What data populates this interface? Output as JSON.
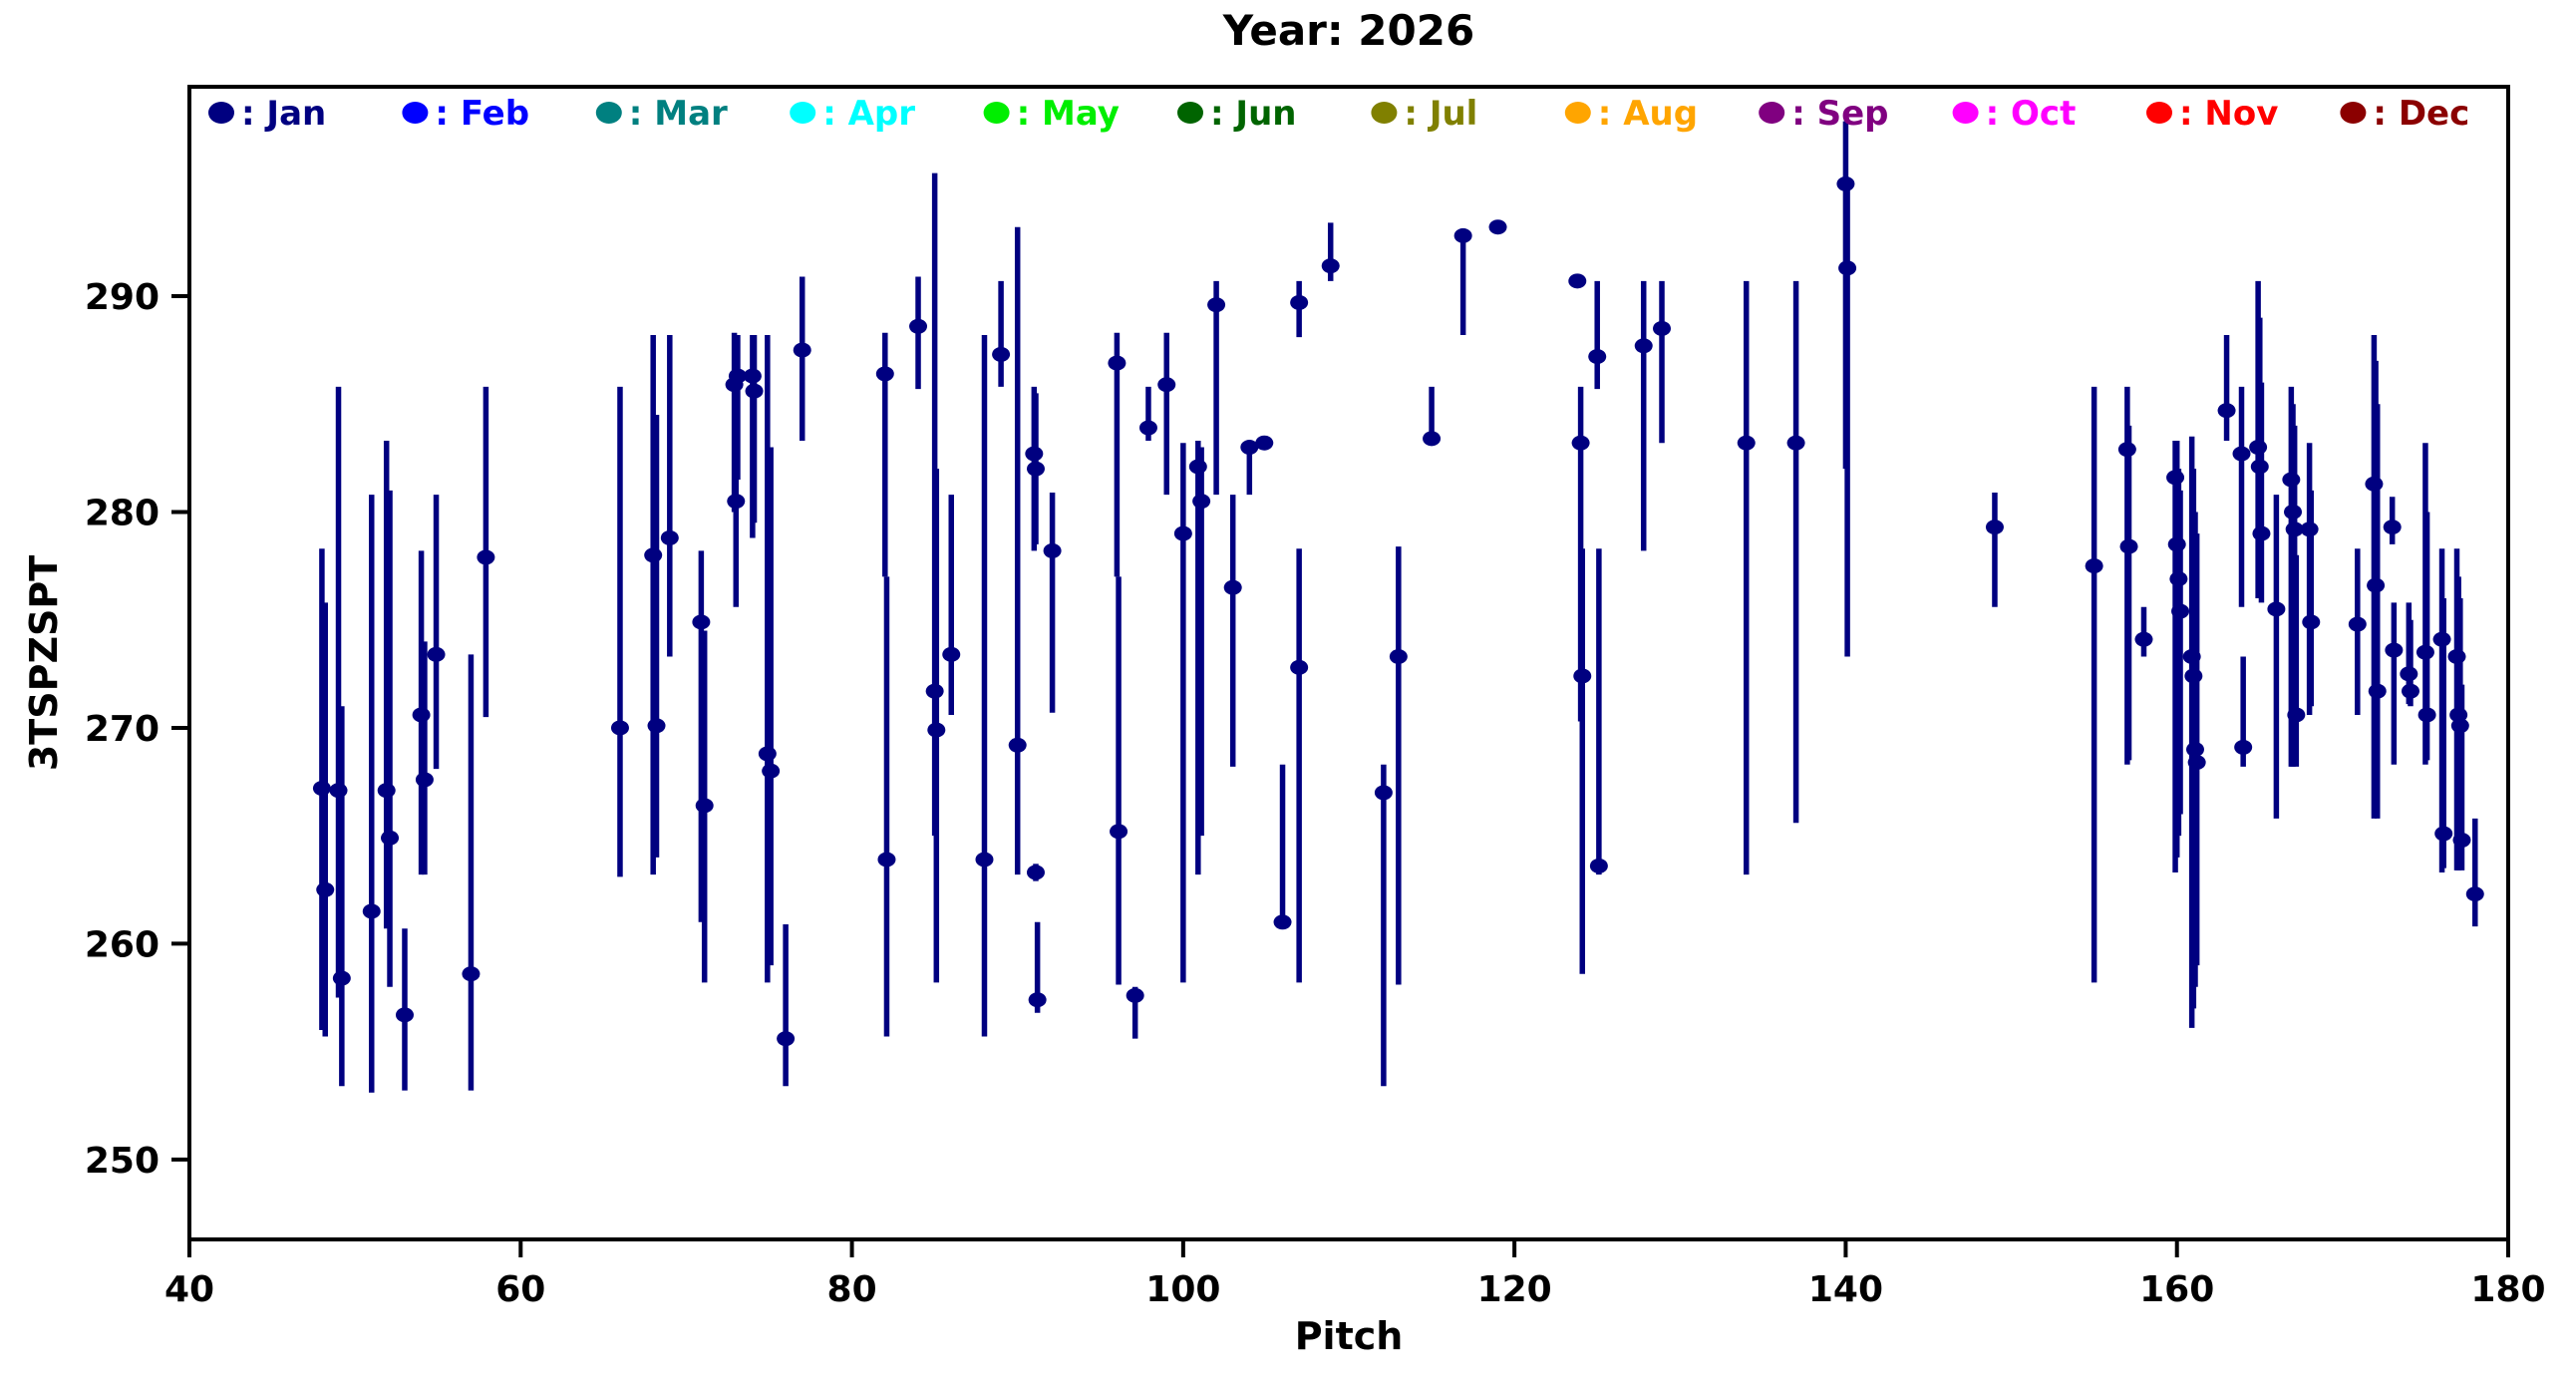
{
  "chart_data": {
    "type": "scatter",
    "title": "Year: 2026",
    "xlabel": "Pitch",
    "ylabel": "3TSPZSPT",
    "xlim": [
      40,
      180
    ],
    "ylim": [
      246.3,
      299.7
    ],
    "xticks": [
      40,
      60,
      80,
      100,
      120,
      140,
      160,
      180
    ],
    "yticks": [
      250,
      260,
      270,
      280,
      290
    ],
    "grid": false,
    "legend_position": "top-inside-row",
    "marker": "circle",
    "error_bars": true,
    "legend": [
      {
        "label": "Jan",
        "color": "#000080"
      },
      {
        "label": "Feb",
        "color": "#0000FF"
      },
      {
        "label": "Mar",
        "color": "#008080"
      },
      {
        "label": "Apr",
        "color": "#00FFFF"
      },
      {
        "label": "May",
        "color": "#00EE00"
      },
      {
        "label": "Jun",
        "color": "#006400"
      },
      {
        "label": "Jul",
        "color": "#808000"
      },
      {
        "label": "Aug",
        "color": "#FFA500"
      },
      {
        "label": "Sep",
        "color": "#800080"
      },
      {
        "label": "Oct",
        "color": "#FF00FF"
      },
      {
        "label": "Nov",
        "color": "#FF0000"
      },
      {
        "label": "Dec",
        "color": "#8B0000"
      }
    ],
    "series": [
      {
        "name": "Jan",
        "color": "#000080",
        "points_format": [
          "pitch",
          "value",
          "err_lo",
          "err_hi"
        ],
        "points": [
          [
            48.0,
            267.2,
            256.0,
            278.3
          ],
          [
            48.2,
            262.5,
            255.7,
            275.8
          ],
          [
            49.0,
            267.1,
            257.5,
            285.8
          ],
          [
            49.2,
            258.4,
            253.4,
            271.0
          ],
          [
            51.0,
            261.5,
            253.1,
            280.8
          ],
          [
            51.9,
            267.1,
            260.7,
            283.3
          ],
          [
            52.1,
            264.9,
            258.0,
            281.0
          ],
          [
            53.0,
            256.7,
            253.2,
            260.7
          ],
          [
            54.0,
            270.6,
            263.2,
            278.2
          ],
          [
            54.2,
            267.6,
            263.2,
            274.0
          ],
          [
            54.9,
            273.4,
            268.1,
            280.8
          ],
          [
            57.0,
            258.6,
            253.2,
            273.4
          ],
          [
            57.9,
            277.9,
            270.5,
            285.8
          ],
          [
            66.0,
            270.0,
            263.1,
            285.8
          ],
          [
            68.0,
            278.0,
            263.2,
            288.2
          ],
          [
            68.2,
            270.1,
            264.0,
            284.5
          ],
          [
            69.0,
            278.8,
            273.3,
            288.2
          ],
          [
            70.9,
            274.9,
            261.0,
            278.2
          ],
          [
            71.1,
            266.4,
            258.2,
            274.5
          ],
          [
            72.9,
            285.9,
            280.0,
            288.3
          ],
          [
            73.0,
            280.5,
            275.6,
            285.5
          ],
          [
            73.1,
            286.3,
            281.5,
            288.2
          ],
          [
            74.0,
            286.3,
            278.8,
            288.2
          ],
          [
            74.1,
            285.6,
            279.5,
            288.2
          ],
          [
            74.9,
            268.8,
            258.2,
            288.2
          ],
          [
            75.1,
            268.0,
            259.0,
            283.0
          ],
          [
            76.0,
            255.6,
            253.4,
            260.9
          ],
          [
            77.0,
            287.5,
            283.3,
            290.9
          ],
          [
            82.0,
            286.4,
            277.0,
            288.3
          ],
          [
            82.1,
            263.9,
            255.7,
            277.0
          ],
          [
            84.0,
            288.6,
            285.7,
            290.9
          ],
          [
            85.0,
            271.7,
            265.0,
            295.7
          ],
          [
            85.1,
            269.9,
            258.2,
            282.0
          ],
          [
            86.0,
            273.4,
            270.6,
            280.8
          ],
          [
            88.0,
            263.9,
            255.7,
            288.2
          ],
          [
            89.0,
            287.3,
            285.8,
            290.7
          ],
          [
            90.0,
            269.2,
            263.2,
            293.2
          ],
          [
            91.0,
            282.7,
            278.2,
            285.8
          ],
          [
            91.1,
            282.0,
            278.5,
            285.5
          ],
          [
            91.1,
            263.3,
            262.9,
            263.7
          ],
          [
            91.2,
            257.4,
            256.8,
            261.0
          ],
          [
            92.1,
            278.2,
            270.7,
            280.9
          ],
          [
            96.0,
            286.9,
            277.0,
            288.3
          ],
          [
            96.1,
            265.2,
            258.1,
            277.0
          ],
          [
            97.1,
            257.6,
            255.6,
            258.0
          ],
          [
            97.9,
            283.9,
            283.3,
            285.8
          ],
          [
            99.0,
            285.9,
            280.8,
            288.3
          ],
          [
            100.0,
            279.0,
            258.2,
            283.2
          ],
          [
            100.9,
            282.1,
            263.2,
            283.3
          ],
          [
            101.1,
            280.5,
            265.0,
            283.0
          ],
          [
            102.0,
            289.6,
            280.8,
            290.7
          ],
          [
            103.0,
            276.5,
            268.2,
            280.8
          ],
          [
            104.0,
            283.0,
            280.8,
            283.2
          ],
          [
            104.9,
            283.2,
            283.0,
            283.4
          ],
          [
            106.0,
            261.0,
            260.9,
            268.3
          ],
          [
            107.0,
            272.8,
            258.2,
            278.3
          ],
          [
            107.0,
            289.7,
            288.1,
            290.7
          ],
          [
            108.9,
            291.4,
            290.7,
            293.4
          ],
          [
            112.1,
            267.0,
            253.4,
            268.3
          ],
          [
            113.0,
            273.3,
            258.1,
            278.4
          ],
          [
            115.0,
            283.4,
            283.3,
            285.8
          ],
          [
            116.9,
            292.8,
            288.2,
            293.0
          ],
          [
            119.0,
            293.2,
            293.0,
            293.4
          ],
          [
            123.8,
            290.7,
            290.5,
            290.9
          ],
          [
            124.0,
            283.2,
            270.3,
            285.8
          ],
          [
            124.1,
            272.4,
            258.6,
            278.3
          ],
          [
            125.0,
            287.2,
            285.7,
            290.7
          ],
          [
            125.1,
            263.6,
            263.2,
            278.3
          ],
          [
            127.8,
            287.7,
            278.2,
            290.7
          ],
          [
            128.9,
            288.5,
            283.2,
            290.7
          ],
          [
            134.0,
            283.2,
            263.2,
            290.7
          ],
          [
            137.0,
            283.2,
            265.6,
            290.7
          ],
          [
            140.0,
            295.2,
            282.0,
            298.1
          ],
          [
            140.1,
            291.3,
            273.3,
            295.0
          ],
          [
            149.0,
            279.3,
            275.6,
            280.9
          ],
          [
            155.0,
            277.5,
            258.2,
            285.8
          ],
          [
            157.0,
            282.9,
            268.3,
            285.8
          ],
          [
            157.1,
            278.4,
            268.5,
            284.0
          ],
          [
            158.0,
            274.1,
            273.3,
            275.6
          ],
          [
            159.9,
            281.6,
            263.3,
            283.3
          ],
          [
            160.0,
            278.5,
            264.0,
            283.3
          ],
          [
            160.1,
            276.9,
            265.0,
            282.0
          ],
          [
            160.2,
            275.4,
            266.0,
            281.0
          ],
          [
            160.9,
            273.3,
            256.1,
            283.5
          ],
          [
            161.0,
            272.4,
            257.0,
            282.0
          ],
          [
            161.1,
            269.0,
            258.0,
            280.0
          ],
          [
            161.2,
            268.4,
            259.0,
            279.0
          ],
          [
            163.0,
            284.7,
            283.3,
            288.2
          ],
          [
            163.9,
            282.7,
            275.6,
            285.8
          ],
          [
            164.0,
            269.1,
            268.2,
            273.3
          ],
          [
            164.9,
            283.0,
            276.0,
            290.7
          ],
          [
            165.0,
            282.1,
            276.5,
            289.0
          ],
          [
            165.1,
            279.0,
            275.8,
            286.0
          ],
          [
            166.0,
            275.5,
            265.8,
            280.8
          ],
          [
            166.9,
            281.5,
            268.2,
            285.8
          ],
          [
            167.0,
            280.0,
            268.2,
            285.0
          ],
          [
            167.1,
            279.2,
            269.0,
            284.0
          ],
          [
            167.2,
            270.6,
            268.2,
            278.0
          ],
          [
            168.0,
            279.2,
            270.6,
            283.2
          ],
          [
            168.1,
            274.9,
            271.0,
            281.0
          ],
          [
            170.9,
            274.8,
            270.6,
            278.3
          ],
          [
            171.9,
            281.3,
            265.8,
            288.2
          ],
          [
            172.0,
            276.6,
            266.5,
            287.0
          ],
          [
            172.1,
            271.7,
            265.8,
            285.0
          ],
          [
            173.0,
            279.3,
            278.5,
            280.7
          ],
          [
            173.1,
            273.6,
            268.3,
            275.8
          ],
          [
            174.0,
            272.5,
            271.1,
            275.8
          ],
          [
            174.1,
            271.7,
            271.0,
            275.0
          ],
          [
            175.0,
            273.5,
            268.3,
            283.2
          ],
          [
            175.1,
            270.6,
            268.5,
            280.0
          ],
          [
            176.0,
            274.1,
            263.3,
            278.3
          ],
          [
            176.1,
            265.1,
            263.5,
            276.0
          ],
          [
            176.9,
            273.3,
            263.4,
            278.3
          ],
          [
            177.0,
            270.6,
            263.4,
            277.0
          ],
          [
            177.1,
            270.1,
            264.0,
            276.0
          ],
          [
            177.2,
            264.8,
            263.4,
            272.0
          ],
          [
            178.0,
            262.3,
            260.8,
            265.8
          ]
        ]
      }
    ]
  }
}
